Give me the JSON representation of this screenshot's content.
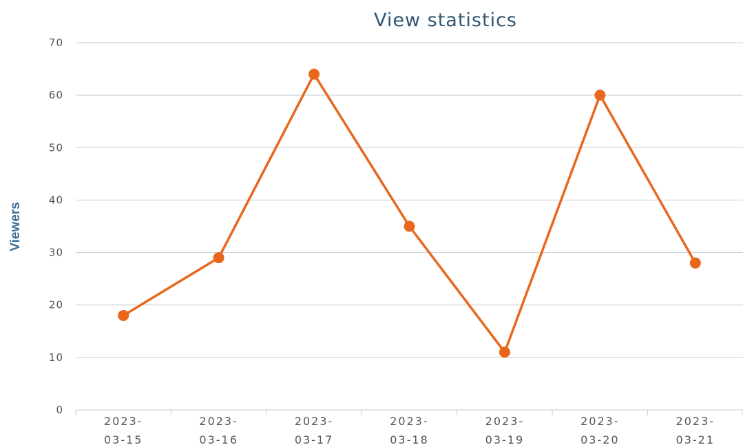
{
  "chart_data": {
    "type": "line",
    "title": "View statistics",
    "xlabel": "",
    "ylabel": "Viewers",
    "ylim": [
      0,
      70
    ],
    "yticks": [
      0,
      10,
      20,
      30,
      40,
      50,
      60,
      70
    ],
    "grid": true,
    "legend": "none",
    "categories": [
      "2023-03-15",
      "2023-03-16",
      "2023-03-17",
      "2023-03-18",
      "2023-03-19",
      "2023-03-20",
      "2023-03-21"
    ],
    "category_lines": [
      [
        "2023-",
        "03-15"
      ],
      [
        "2023-",
        "03-16"
      ],
      [
        "2023-",
        "03-17"
      ],
      [
        "2023-",
        "03-18"
      ],
      [
        "2023-",
        "03-19"
      ],
      [
        "2023-",
        "03-20"
      ],
      [
        "2023-",
        "03-21"
      ]
    ],
    "series": [
      {
        "values": [
          18,
          29,
          64,
          35,
          11,
          60,
          28
        ],
        "color": "#e8671c"
      }
    ]
  }
}
